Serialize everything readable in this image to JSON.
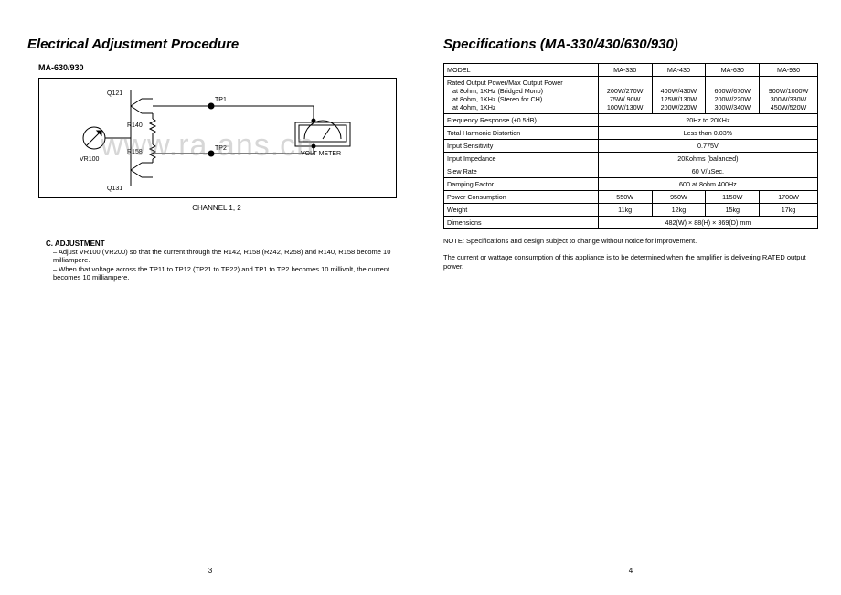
{
  "left": {
    "title": "Electrical Adjustment Procedure",
    "model": "MA-630/930",
    "diagram_caption": "CHANNEL 1, 2",
    "circuit": {
      "q121": "Q121",
      "q131": "Q131",
      "r140": "R140",
      "r158": "R158",
      "vr100": "VR100",
      "tp1": "TP1",
      "tp2": "TP2",
      "volt_meter": "VOLT METER"
    },
    "adjustment_head": "C. ADJUSTMENT",
    "adjustment_line1": "– Adjust VR100 (VR200) so that the current through the R142, R158 (R242, R258) and R140, R158 become 10 milliampere.",
    "adjustment_line2": "– When that voltage across the TP11 to TP12 (TP21 to TP22) and TP1 to TP2 becomes 10 millivolt, the current becomes 10 milliampere.",
    "pagenum": "3",
    "watermark": "www.ra            ans.cn"
  },
  "right": {
    "title": "Specifications (MA-330/430/630/930)",
    "table": {
      "header_model": "MODEL",
      "models": [
        "MA-330",
        "MA-430",
        "MA-630",
        "MA-930"
      ],
      "rows": [
        {
          "label": "Rated Output Power/Max Output Power",
          "span": true
        },
        {
          "label": "at 8ohm, 1KHz (Bridged Mono)",
          "vals": [
            "200W/270W",
            "400W/430W",
            "600W/670W",
            "900W/1000W"
          ],
          "sub": true
        },
        {
          "label": "at 8ohm, 1KHz (Stereo for CH)",
          "vals": [
            "75W/ 90W",
            "125W/130W",
            "200W/220W",
            "300W/330W"
          ],
          "sub": true
        },
        {
          "label": "at 4ohm, 1KHz",
          "vals": [
            "100W/130W",
            "200W/220W",
            "300W/340W",
            "450W/520W"
          ],
          "sub": true
        },
        {
          "label": "Frequency Response (±0.5dB)",
          "full": "20Hz to 20KHz"
        },
        {
          "label": "Total Harmonic Distortion",
          "full": "Less than 0.03%"
        },
        {
          "label": "Input Sensitivity",
          "full": "0.775V"
        },
        {
          "label": "Input Impedance",
          "full": "20Kohms (balanced)"
        },
        {
          "label": "Slew Rate",
          "full": "60 V/µSec."
        },
        {
          "label": "Damping Factor",
          "full": "600 at 8ohm 400Hz"
        },
        {
          "label": "Power Consumption",
          "vals": [
            "550W",
            "950W",
            "1150W",
            "1700W"
          ]
        },
        {
          "label": "Weight",
          "vals": [
            "11kg",
            "12kg",
            "15kg",
            "17kg"
          ]
        },
        {
          "label": "Dimensions",
          "full": "482(W) × 88(H) × 369(D) mm"
        }
      ]
    },
    "note1": "NOTE: Specifications and design subject to change without notice for improvement.",
    "note2": "The current or wattage consumption of this appliance is to be determined when the amplifier is delivering RATED output power.",
    "pagenum": "4"
  },
  "style": {
    "bg": "#ffffff",
    "text": "#000000",
    "watermark_color": "rgba(140,140,140,0.35)",
    "title_fontsize": 15,
    "body_fontsize": 7.5
  }
}
